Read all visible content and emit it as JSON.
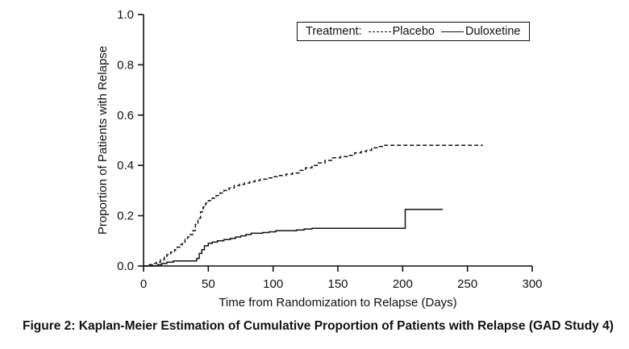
{
  "caption": "Figure 2: Kaplan-Meier Estimation of Cumulative Proportion of Patients with Relapse (GAD Study 4)",
  "legend": {
    "prefix": "Treatment:"
  },
  "chart_data": {
    "type": "line",
    "subtype": "kaplan-meier-step",
    "title": "",
    "xlabel": "Time from Randomization to Relapse (Days)",
    "ylabel": "Proportion of Patients with Relapse",
    "xlim": [
      0,
      300
    ],
    "ylim": [
      0.0,
      1.0
    ],
    "x_ticks": [
      0,
      50,
      100,
      150,
      200,
      250,
      300
    ],
    "y_ticks": [
      0.0,
      0.2,
      0.4,
      0.6,
      0.8,
      1.0
    ],
    "grid": false,
    "legend_position": "top-right-inside",
    "line_color": "#111111",
    "step": "after",
    "series": [
      {
        "name": "Placebo",
        "dash": "dashed",
        "points": [
          [
            0,
            0
          ],
          [
            4,
            0.005
          ],
          [
            7,
            0.01
          ],
          [
            10,
            0.015
          ],
          [
            13,
            0.025
          ],
          [
            16,
            0.035
          ],
          [
            18,
            0.045
          ],
          [
            21,
            0.055
          ],
          [
            24,
            0.065
          ],
          [
            26,
            0.075
          ],
          [
            28,
            0.085
          ],
          [
            30,
            0.095
          ],
          [
            32,
            0.105
          ],
          [
            34,
            0.115
          ],
          [
            36,
            0.125
          ],
          [
            38,
            0.14
          ],
          [
            40,
            0.165
          ],
          [
            42,
            0.19
          ],
          [
            44,
            0.215
          ],
          [
            46,
            0.235
          ],
          [
            48,
            0.25
          ],
          [
            50,
            0.26
          ],
          [
            53,
            0.27
          ],
          [
            56,
            0.28
          ],
          [
            59,
            0.29
          ],
          [
            62,
            0.3
          ],
          [
            66,
            0.31
          ],
          [
            70,
            0.32
          ],
          [
            74,
            0.325
          ],
          [
            78,
            0.33
          ],
          [
            82,
            0.335
          ],
          [
            86,
            0.34
          ],
          [
            90,
            0.345
          ],
          [
            95,
            0.35
          ],
          [
            100,
            0.355
          ],
          [
            105,
            0.36
          ],
          [
            110,
            0.365
          ],
          [
            115,
            0.37
          ],
          [
            120,
            0.38
          ],
          [
            125,
            0.39
          ],
          [
            130,
            0.4
          ],
          [
            135,
            0.41
          ],
          [
            140,
            0.42
          ],
          [
            146,
            0.43
          ],
          [
            152,
            0.435
          ],
          [
            158,
            0.44
          ],
          [
            163,
            0.45
          ],
          [
            168,
            0.455
          ],
          [
            172,
            0.46
          ],
          [
            176,
            0.47
          ],
          [
            181,
            0.475
          ],
          [
            185,
            0.48
          ],
          [
            262,
            0.48
          ]
        ]
      },
      {
        "name": "Duloxetine",
        "dash": "solid",
        "points": [
          [
            0,
            0
          ],
          [
            11,
            0.005
          ],
          [
            14,
            0.01
          ],
          [
            18,
            0.015
          ],
          [
            23,
            0.02
          ],
          [
            41,
            0.03
          ],
          [
            43,
            0.05
          ],
          [
            45,
            0.065
          ],
          [
            47,
            0.08
          ],
          [
            50,
            0.09
          ],
          [
            53,
            0.095
          ],
          [
            57,
            0.1
          ],
          [
            62,
            0.105
          ],
          [
            67,
            0.11
          ],
          [
            71,
            0.115
          ],
          [
            75,
            0.12
          ],
          [
            79,
            0.125
          ],
          [
            83,
            0.13
          ],
          [
            92,
            0.133
          ],
          [
            97,
            0.136
          ],
          [
            102,
            0.14
          ],
          [
            118,
            0.143
          ],
          [
            124,
            0.147
          ],
          [
            130,
            0.15
          ],
          [
            200,
            0.15
          ],
          [
            202,
            0.225
          ],
          [
            231,
            0.225
          ]
        ]
      }
    ]
  }
}
